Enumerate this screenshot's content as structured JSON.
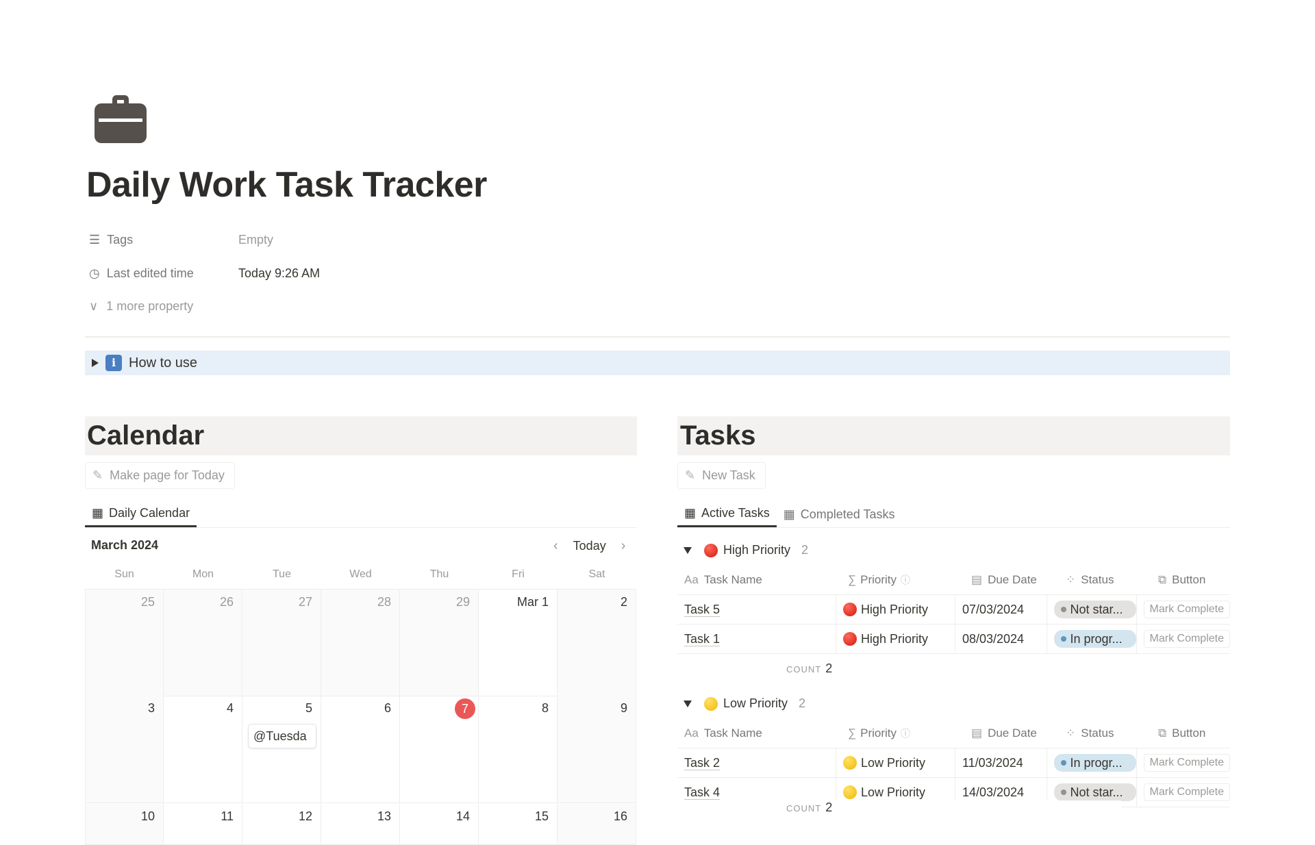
{
  "page": {
    "icon": "briefcase-icon",
    "title": "Daily Work Task Tracker"
  },
  "properties": [
    {
      "icon": "list-icon",
      "label": "Tags",
      "value": "Empty"
    },
    {
      "icon": "clock-icon",
      "label": "Last edited time",
      "value": "Today 9:26 AM"
    }
  ],
  "more_properties": "1 more property",
  "toggle": {
    "icon": "info-icon",
    "glyph": "i",
    "label": "How to use"
  },
  "calendar": {
    "heading": "Calendar",
    "button": "Make page for Today",
    "tab": "Daily Calendar",
    "month": "March 2024",
    "today_label": "Today",
    "weekdays": [
      "Sun",
      "Mon",
      "Tue",
      "Wed",
      "Thu",
      "Fri",
      "Sat"
    ],
    "weeks": [
      [
        "25",
        "26",
        "27",
        "28",
        "29",
        "Mar 1",
        "2"
      ],
      [
        "3",
        "4",
        "5",
        "6",
        "7",
        "8",
        "9"
      ],
      [
        "10",
        "11",
        "12",
        "13",
        "14",
        "15",
        "16"
      ]
    ],
    "today_date": "7",
    "event": "@Tuesda",
    "accent": "#eb5757"
  },
  "tasks": {
    "heading": "Tasks",
    "button": "New Task",
    "tabs": [
      "Active Tasks",
      "Completed Tasks"
    ],
    "columns": [
      "Task Name",
      "Priority",
      "Due Date",
      "Status",
      "Button"
    ],
    "column_icons": [
      "Aa",
      "∑",
      "calendar-icon",
      "status-icon",
      "button-icon"
    ],
    "count_label": "COUNT",
    "groups": [
      {
        "label": "High Priority",
        "count": "2",
        "color": "red",
        "rows": [
          {
            "name": "Task 5",
            "priority": "High Priority",
            "due": "07/03/2024",
            "status": "Not star...",
            "status_type": "not-started",
            "button": "Mark Complete"
          },
          {
            "name": "Task 1",
            "priority": "High Priority",
            "due": "08/03/2024",
            "status": "In progr...",
            "status_type": "in-progress",
            "button": "Mark Complete"
          }
        ],
        "total": "2"
      },
      {
        "label": "Low Priority",
        "count": "2",
        "color": "yellow",
        "rows": [
          {
            "name": "Task 2",
            "priority": "Low Priority",
            "due": "11/03/2024",
            "status": "In progr...",
            "status_type": "in-progress",
            "button": "Mark Complete"
          },
          {
            "name": "Task 4",
            "priority": "Low Priority",
            "due": "14/03/2024",
            "status": "Not star...",
            "status_type": "not-started",
            "button": "Mark Complete"
          }
        ],
        "total": "2"
      }
    ],
    "status_colors": {
      "not-started": "#e3e2e0",
      "in-progress": "#d3e5ef"
    }
  }
}
